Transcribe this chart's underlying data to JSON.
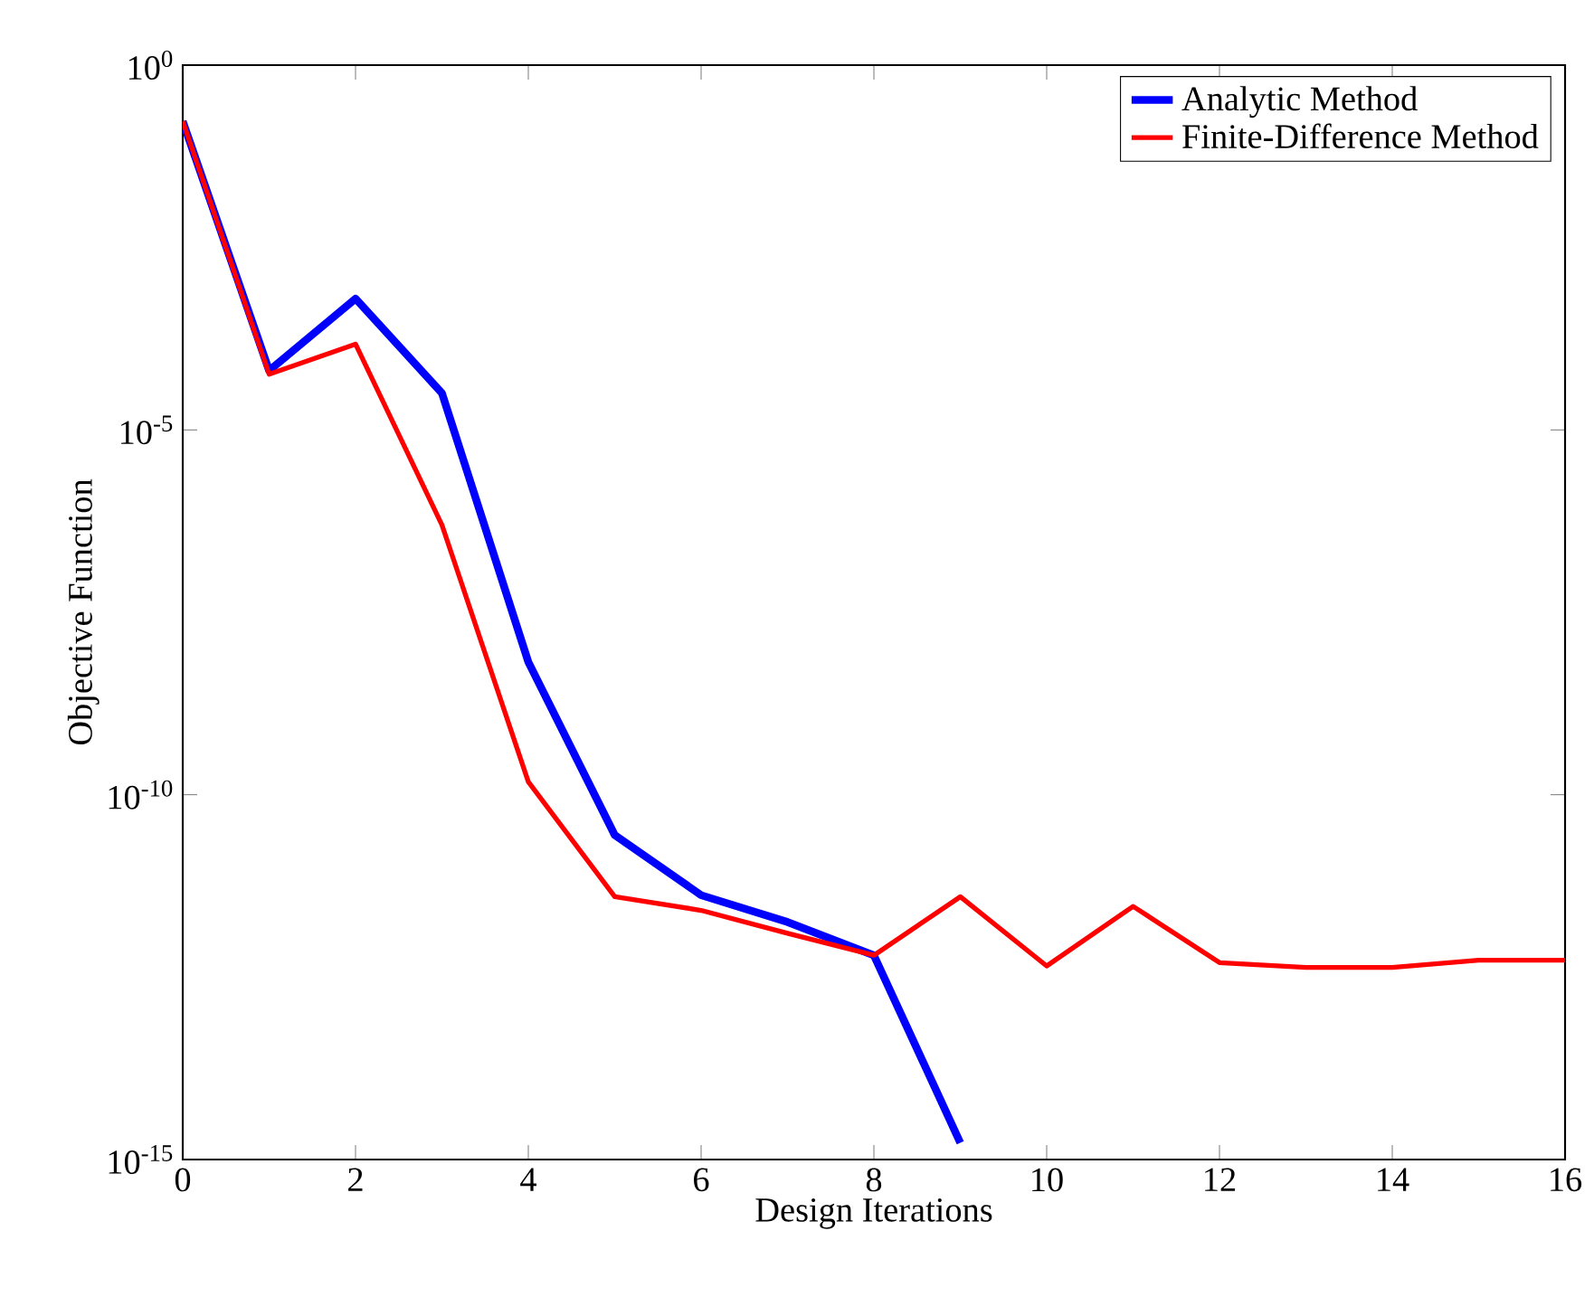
{
  "chart_data": {
    "type": "line",
    "xlabel": "Design Iterations",
    "ylabel": "Objective Function",
    "log": "y",
    "xlim": [
      0,
      16
    ],
    "xticks": [
      0,
      2,
      4,
      6,
      8,
      10,
      12,
      14,
      16
    ],
    "ylim": [
      1e-15,
      1
    ],
    "yticks": [
      {
        "value": 1e-15,
        "label": "10$^{-15}$"
      },
      {
        "value": 1e-10,
        "label": "10$^{-10}$"
      },
      {
        "value": 1e-05,
        "label": "10$^{-5}$"
      },
      {
        "value": 1,
        "label": "10$^{0}$"
      }
    ],
    "grid": false,
    "legend": "top right",
    "marker": "none",
    "line_style": "solid",
    "series": [
      {
        "name": "Analytic Method",
        "color": "#0000ff",
        "x": [
          0,
          1,
          2,
          3,
          4,
          5,
          6,
          7,
          8,
          9
        ],
        "values": [
          0.17,
          6.5e-05,
          0.00063,
          3.2e-05,
          6.6e-09,
          2.8e-11,
          4.2e-12,
          1.8e-12,
          6.3e-13,
          1.7e-15
        ]
      },
      {
        "name": "Finite-Difference Method",
        "color": "#ff0000",
        "x": [
          0,
          1,
          2,
          3,
          4,
          5,
          6,
          7,
          8,
          9,
          10,
          11,
          12,
          13,
          14,
          15,
          16
        ],
        "values": [
          0.17,
          5.8e-05,
          0.00015,
          5e-07,
          1.5e-10,
          4e-12,
          2.6e-12,
          1.26e-12,
          6.3e-13,
          4e-12,
          4.5e-13,
          2.95e-12,
          5e-13,
          4.3e-13,
          4.3e-13,
          5.4e-13,
          5.4e-13
        ]
      }
    ]
  }
}
